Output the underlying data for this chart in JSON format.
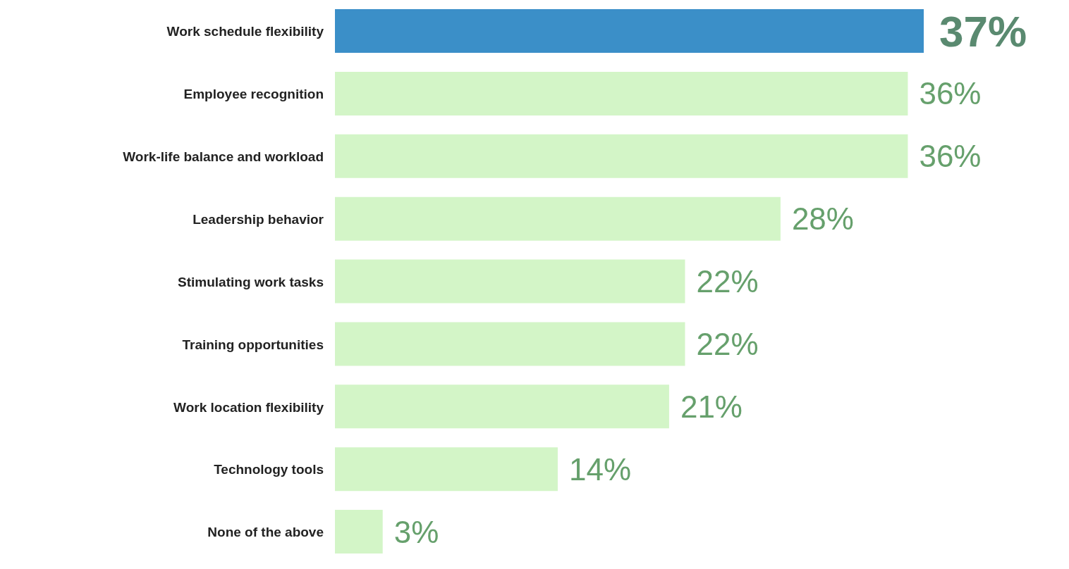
{
  "chart_data": {
    "type": "bar",
    "orientation": "horizontal",
    "categories": [
      "Work schedule flexibility",
      "Employee recognition",
      "Work-life balance and workload",
      "Leadership behavior",
      "Stimulating work tasks",
      "Training opportunities",
      "Work location flexibility",
      "Technology tools",
      "None of the above"
    ],
    "values": [
      37,
      36,
      36,
      28,
      22,
      22,
      21,
      14,
      3
    ],
    "value_labels": [
      "37%",
      "36%",
      "36%",
      "28%",
      "22%",
      "22%",
      "21%",
      "14%",
      "3%"
    ],
    "colors": [
      "#3b8fc8",
      "#d3f5c7",
      "#d3f5c7",
      "#d3f5c7",
      "#d3f5c7",
      "#d3f5c7",
      "#d3f5c7",
      "#d3f5c7",
      "#d3f5c7"
    ],
    "grid": false,
    "legend": false
  }
}
